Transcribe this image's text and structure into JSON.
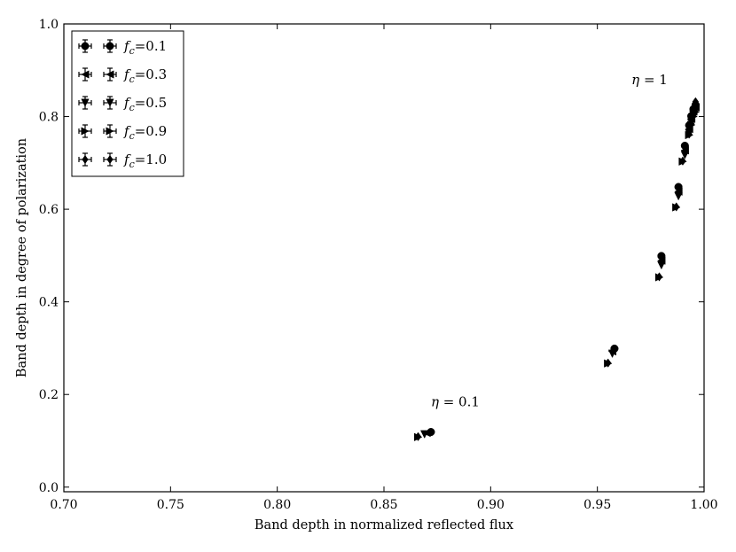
{
  "chart_data": {
    "type": "scatter",
    "xlabel": "Band depth in normalized reflected flux",
    "ylabel": "Band depth in degree of polarization",
    "xlim": [
      0.7,
      1.0
    ],
    "ylim": [
      -0.01,
      1.0
    ],
    "x_ticks": [
      "0.70",
      "0.75",
      "0.80",
      "0.85",
      "0.90",
      "0.95",
      "1.00"
    ],
    "y_ticks": [
      "0.0",
      "0.2",
      "0.4",
      "0.6",
      "0.8",
      "1.0"
    ],
    "grid": false,
    "legend_position": "top-left",
    "marker_color": "#000000",
    "series": [
      {
        "name": "f_c=0.1",
        "label_main": "f",
        "label_sub": "c",
        "label_rest": "=0.1",
        "marker": "circle",
        "x": [
          0.872,
          0.958,
          0.98,
          0.988,
          0.991,
          0.993,
          0.994,
          0.995,
          0.996
        ],
        "y": [
          0.119,
          0.299,
          0.499,
          0.648,
          0.737,
          0.781,
          0.801,
          0.816,
          0.825
        ]
      },
      {
        "name": "f_c=0.3",
        "label_main": "f",
        "label_sub": "c",
        "label_rest": "=0.3",
        "marker": "triangle-left",
        "x": [
          0.87,
          0.957,
          0.98,
          0.988,
          0.991,
          0.993,
          0.994,
          0.995,
          0.996
        ],
        "y": [
          0.117,
          0.293,
          0.489,
          0.638,
          0.727,
          0.773,
          0.795,
          0.811,
          0.82
        ]
      },
      {
        "name": "f_c=0.5",
        "label_main": "f",
        "label_sub": "c",
        "label_rest": "=0.5",
        "marker": "triangle-down",
        "x": [
          0.869,
          0.957,
          0.98,
          0.988,
          0.991,
          0.993,
          0.994,
          0.995,
          0.996
        ],
        "y": [
          0.114,
          0.288,
          0.479,
          0.628,
          0.717,
          0.764,
          0.787,
          0.804,
          0.813
        ]
      },
      {
        "name": "f_c=0.9",
        "label_main": "f",
        "label_sub": "c",
        "label_rest": "=0.9",
        "marker": "triangle-right",
        "x": [
          0.866,
          0.955,
          0.979,
          0.987,
          0.99,
          0.993,
          0.994,
          0.995,
          0.996
        ],
        "y": [
          0.108,
          0.267,
          0.453,
          0.604,
          0.703,
          0.76,
          0.782,
          0.8,
          0.81
        ]
      },
      {
        "name": "f_c=1.0",
        "label_main": "f",
        "label_sub": "c",
        "label_rest": "=1.0",
        "marker": "diamond",
        "x": [
          0.866,
          0.955,
          0.979,
          0.987,
          0.99,
          0.993,
          0.994,
          0.995,
          0.996
        ],
        "y": [
          0.109,
          0.268,
          0.454,
          0.605,
          0.704,
          0.762,
          0.785,
          0.803,
          0.832
        ]
      }
    ],
    "annotations": [
      {
        "id": "eta_low",
        "greek": "η",
        "rest": " = 0.1",
        "x": 0.872,
        "y": 0.175
      },
      {
        "id": "eta_high",
        "greek": "η",
        "rest": " = 1",
        "x": 0.966,
        "y": 0.87
      }
    ]
  }
}
